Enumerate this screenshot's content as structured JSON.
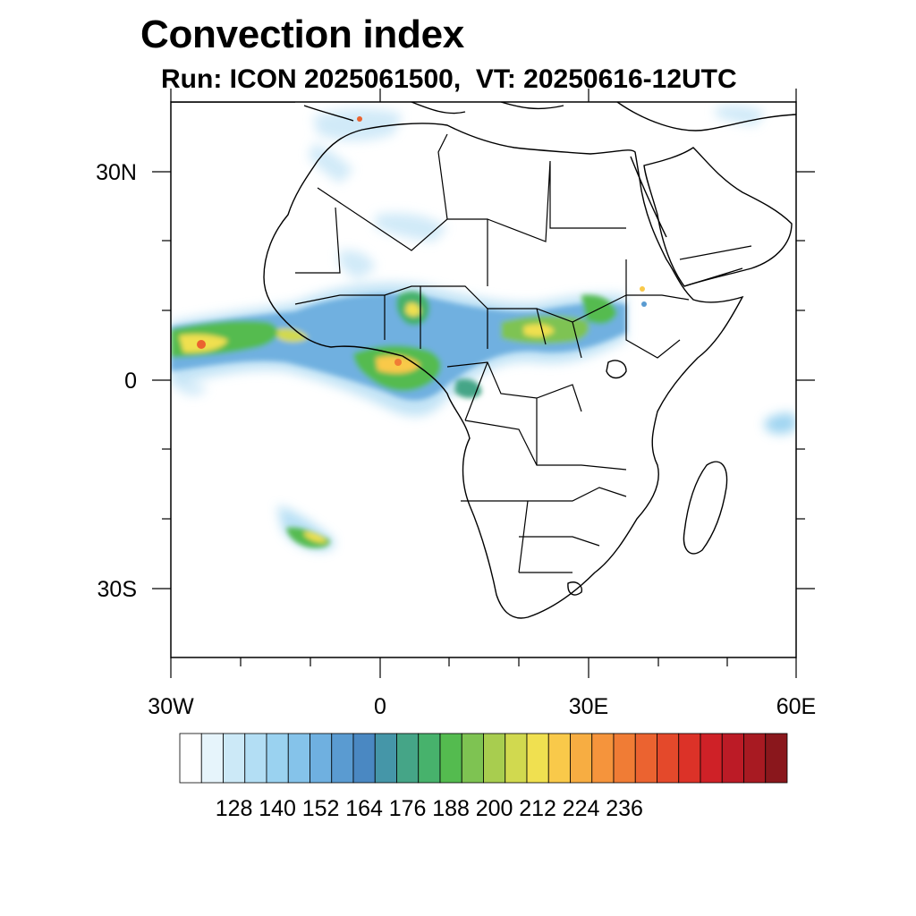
{
  "title": "Convection index",
  "subtitle": "Run: ICON 2025061500,  VT: 20250616-12UTC",
  "axes": {
    "lon_labels": [
      "30W",
      "0",
      "30E",
      "60E"
    ],
    "lat_labels": [
      "30N",
      "0",
      "30S"
    ],
    "lon_range": [
      -30,
      60
    ],
    "lat_range": [
      -40,
      40
    ]
  },
  "colorbar": {
    "tick_labels": [
      "128",
      "140",
      "152",
      "164",
      "176",
      "188",
      "200",
      "212",
      "224",
      "236"
    ],
    "colors": [
      "#ffffff",
      "#e6f4fb",
      "#cce9f7",
      "#b3def4",
      "#9ad2f0",
      "#85c3ea",
      "#6fb0e0",
      "#5a9bd1",
      "#4a88c2",
      "#4596a8",
      "#45a587",
      "#47b26c",
      "#54bb4f",
      "#7ec352",
      "#a8cd4f",
      "#d1d94f",
      "#f0e050",
      "#f9c94a",
      "#f7ad42",
      "#f5943c",
      "#f07c35",
      "#eb6330",
      "#e4492b",
      "#dc3228",
      "#cf2127",
      "#bc1b26",
      "#a81a22",
      "#8a171c"
    ]
  },
  "legend_colors": {
    "land_outline": "#000000",
    "background": "#ffffff"
  }
}
